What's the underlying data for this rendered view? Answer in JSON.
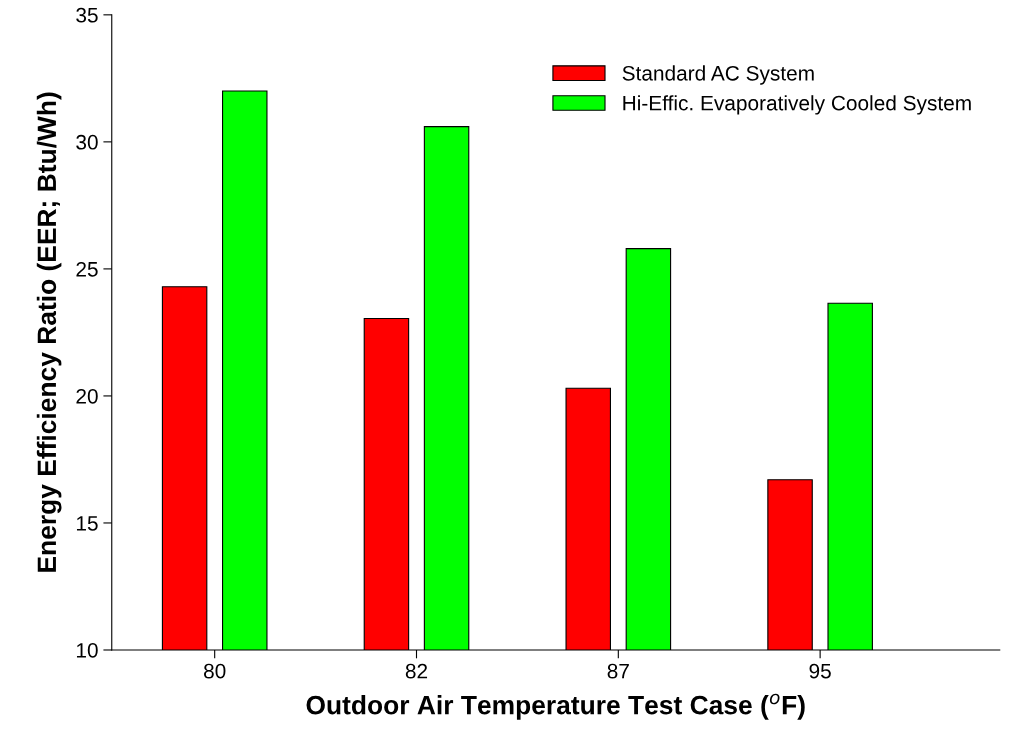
{
  "chart_data": {
    "type": "bar",
    "xlabel": "Outdoor Air Temperature Test Case ($^{o}$F)",
    "ylabel": "Energy Efficiency Ratio (EER; Btu/Wh)",
    "categories": [
      "80",
      "82",
      "87",
      "95"
    ],
    "series": [
      {
        "name": "Standard AC System",
        "color": "#ff0000",
        "values": [
          24.3,
          23.05,
          20.3,
          16.7
        ]
      },
      {
        "name": "Hi-Effic. Evaporatively Cooled System",
        "color": "#00ff00",
        "values": [
          32.0,
          30.6,
          25.8,
          23.65
        ]
      }
    ],
    "ylim": [
      10,
      35
    ],
    "yticks": [
      10,
      15,
      20,
      25,
      30,
      35
    ],
    "grid": false,
    "legend": "top right"
  }
}
